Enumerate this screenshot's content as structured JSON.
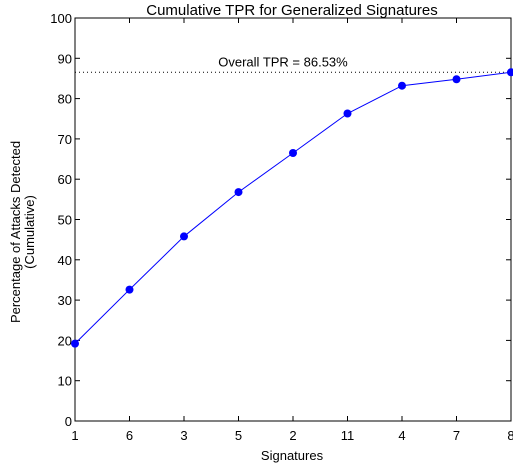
{
  "chart_data": {
    "type": "line",
    "title": "Cumulative TPR for Generalized Signatures",
    "xlabel": "Signatures",
    "ylabel_lines": [
      "Percentage of Attacks Detected",
      "(Cumulative)"
    ],
    "categories": [
      "1",
      "6",
      "3",
      "5",
      "2",
      "11",
      "4",
      "7",
      "8"
    ],
    "series": [
      {
        "values": [
          19.2,
          32.6,
          45.8,
          56.8,
          66.5,
          76.3,
          83.2,
          84.8,
          86.53
        ]
      }
    ],
    "ylim": [
      0,
      100
    ],
    "yticks": [
      0,
      10,
      20,
      30,
      40,
      50,
      60,
      70,
      80,
      90,
      100
    ],
    "reference_line": {
      "value": 86.53,
      "label": "Overall TPR = 86.53%",
      "style": "dotted"
    },
    "grid": false,
    "line_color": "#0000ff",
    "marker_color": "#0000ff",
    "marker": "filled-circle"
  }
}
